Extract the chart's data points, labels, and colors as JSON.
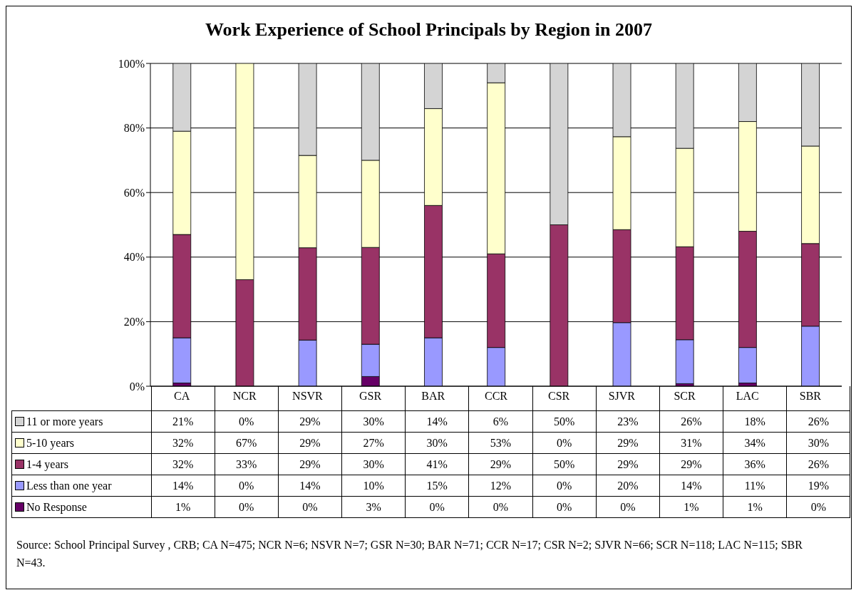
{
  "chart_data": {
    "type": "bar",
    "title": "Work Experience of School Principals by Region in 2007",
    "categories": [
      "CA",
      "NCR",
      "NSVR",
      "GSR",
      "BAR",
      "CCR",
      "CSR",
      "SJVR",
      "SCR",
      "LAC",
      "SBR"
    ],
    "series": [
      {
        "name": "No Response",
        "color": "#660066",
        "values": [
          1,
          0,
          0,
          3,
          0,
          0,
          0,
          0,
          0.8,
          1,
          0
        ],
        "value_labels": [
          "1%",
          "0%",
          "0%",
          "3%",
          "0%",
          "0%",
          "0%",
          "0%",
          "1%",
          "1%",
          "0%"
        ]
      },
      {
        "name": "Less than one year",
        "color": "#9999ff",
        "values": [
          14,
          0,
          14.3,
          10,
          15,
          12,
          0,
          19.7,
          13.6,
          11,
          18.6
        ],
        "value_labels": [
          "14%",
          "0%",
          "14%",
          "10%",
          "15%",
          "12%",
          "0%",
          "20%",
          "14%",
          "11%",
          "19%"
        ]
      },
      {
        "name": "1-4 years",
        "color": "#993366",
        "values": [
          32,
          33,
          28.6,
          30,
          41,
          29,
          50,
          28.8,
          28.8,
          36,
          25.6
        ],
        "value_labels": [
          "32%",
          "33%",
          "29%",
          "30%",
          "41%",
          "29%",
          "50%",
          "29%",
          "29%",
          "36%",
          "26%"
        ]
      },
      {
        "name": "5-10 years",
        "color": "#ffffcc",
        "values": [
          32,
          67,
          28.6,
          27,
          30,
          53,
          0,
          28.8,
          30.5,
          34,
          30.2
        ],
        "value_labels": [
          "32%",
          "67%",
          "29%",
          "27%",
          "30%",
          "53%",
          "0%",
          "29%",
          "31%",
          "34%",
          "30%"
        ]
      },
      {
        "name": "11 or more years",
        "color": "#d4d4d4",
        "values": [
          21,
          0,
          28.6,
          30,
          14,
          6,
          50,
          22.7,
          26.3,
          18,
          25.6
        ],
        "value_labels": [
          "21%",
          "0%",
          "29%",
          "30%",
          "14%",
          "6%",
          "50%",
          "23%",
          "26%",
          "18%",
          "26%"
        ]
      }
    ],
    "stacked": true,
    "ylim": [
      0,
      100
    ],
    "yticks": [
      {
        "value": 0,
        "label": "0%"
      },
      {
        "value": 20,
        "label": "20%"
      },
      {
        "value": 40,
        "label": "40%"
      },
      {
        "value": 60,
        "label": "60%"
      },
      {
        "value": 80,
        "label": "80%"
      },
      {
        "value": 100,
        "label": "100%"
      }
    ],
    "grid": "y",
    "legend": "bottom",
    "annotations": [
      "Source: School Principal Survey , CRB; CA N=475; NCR N=6; NSVR N=7; GSR N=30; BAR N=71; CCR N=17; CSR N=2; SJVR N=66; SCR N=118; LAC N=115; SBR N=43."
    ]
  }
}
